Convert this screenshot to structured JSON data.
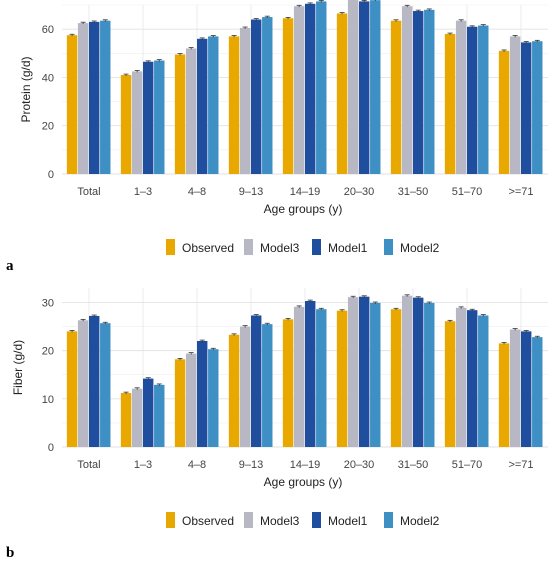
{
  "colors": {
    "Observed": "#E8A800",
    "Model3": "#B8B8C4",
    "Model1": "#1F4E9E",
    "Model2": "#3E8FC4"
  },
  "chart_data": [
    {
      "type": "bar",
      "panel_label": "a",
      "title": "",
      "xlabel": "Age groups (y)",
      "ylabel": "Protein (g/d)",
      "ylim": [
        0,
        70
      ],
      "yticks": [
        0,
        20,
        40,
        60
      ],
      "grid": true,
      "legend_position": "bottom",
      "categories": [
        "Total",
        "1–3",
        "4–8",
        "9–13",
        "14–19",
        "20–30",
        "31–50",
        "51–70",
        ">=71"
      ],
      "series": [
        {
          "name": "Observed",
          "values": [
            57.5,
            41,
            49.5,
            57,
            64.5,
            66.5,
            63.5,
            58,
            51
          ]
        },
        {
          "name": "Model3",
          "values": [
            62.5,
            42.5,
            52,
            60.5,
            69.5,
            72.5,
            69.5,
            63.5,
            57
          ]
        },
        {
          "name": "Model1",
          "values": [
            63,
            46.5,
            56,
            64,
            70.5,
            71.5,
            67.5,
            61,
            54.5
          ]
        },
        {
          "name": "Model2",
          "values": [
            63.5,
            47,
            57,
            65,
            71.5,
            72,
            68,
            61.5,
            55
          ]
        }
      ]
    },
    {
      "type": "bar",
      "panel_label": "b",
      "title": "",
      "xlabel": "Age groups (y)",
      "ylabel": "Fiber (g/d)",
      "ylim": [
        0,
        33
      ],
      "yticks": [
        0,
        10,
        20,
        30
      ],
      "grid": true,
      "legend_position": "bottom",
      "categories": [
        "Total",
        "1–3",
        "4–8",
        "9–13",
        "14–19",
        "20–30",
        "31–50",
        "51–70",
        ">=71"
      ],
      "series": [
        {
          "name": "Observed",
          "values": [
            24,
            11.2,
            18.2,
            23.3,
            26.5,
            28.3,
            28.6,
            26.1,
            21.5
          ]
        },
        {
          "name": "Model3",
          "values": [
            26.3,
            12.1,
            19.4,
            25,
            29.1,
            31.1,
            31.4,
            28.9,
            24.4
          ]
        },
        {
          "name": "Model1",
          "values": [
            27.2,
            14.2,
            22,
            27.3,
            30.3,
            31.2,
            31,
            28.4,
            24
          ]
        },
        {
          "name": "Model2",
          "values": [
            25.7,
            12.9,
            20.3,
            25.5,
            28.6,
            29.9,
            29.9,
            27.3,
            22.8
          ]
        }
      ]
    }
  ]
}
